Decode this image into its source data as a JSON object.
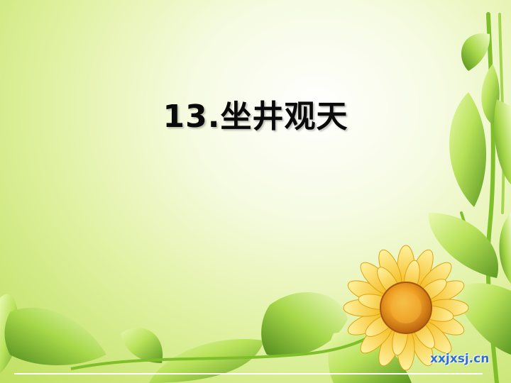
{
  "slide": {
    "title": "13.坐井观天"
  },
  "watermark": {
    "text": "xxjxsj.cn"
  },
  "colors": {
    "background_light": "#f6fbe2",
    "background_green": "#cde77b",
    "leaf_light": "#c4e86a",
    "leaf_dark": "#6ea82a",
    "sunflower_petal": "#f5c21b",
    "sunflower_center": "#e8901c",
    "title_text": "#0a0a0a",
    "watermark_text": "#2f6fd0"
  },
  "decorations": {
    "sunflower": "sunflower-icon",
    "leaves": "leaf-icon",
    "vines": "vine-icon"
  }
}
